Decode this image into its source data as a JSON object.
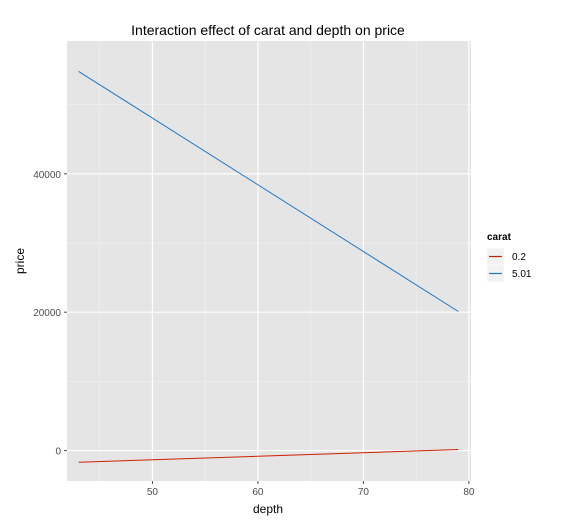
{
  "chart_data": {
    "type": "line",
    "title": "Interaction effect of carat and depth on price",
    "xlabel": "depth",
    "ylabel": "price",
    "xlim": [
      41.9,
      80.2
    ],
    "ylim": [
      -4400,
      59200
    ],
    "x_ticks": [
      50,
      60,
      70,
      80
    ],
    "y_ticks": [
      0,
      20000,
      40000
    ],
    "grid": true,
    "legend": {
      "title": "carat",
      "position": "right"
    },
    "series": [
      {
        "name": "0.2",
        "color": "#cc2200",
        "x": [
          43,
          79
        ],
        "y": [
          -1700,
          150
        ]
      },
      {
        "name": "5.01",
        "color": "#1f78c8",
        "x": [
          43,
          79
        ],
        "y": [
          54800,
          20100
        ]
      }
    ]
  }
}
